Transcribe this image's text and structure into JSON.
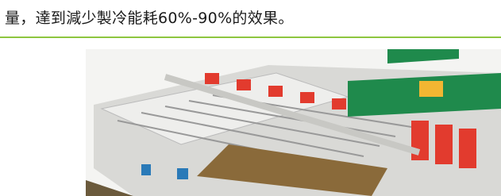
{
  "text": "量，達到減少製冷能耗60%-90%的效果。"
}
